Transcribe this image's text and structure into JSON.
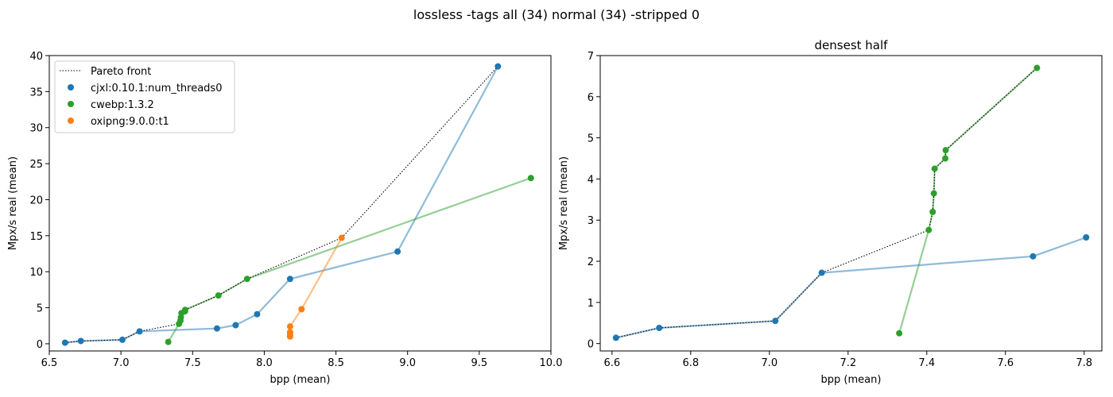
{
  "suptitle": "lossless -tags all (34) normal (34) -stripped 0",
  "colors": {
    "cjxl": "#1f77b4",
    "cwebp": "#2ca02c",
    "oxipng": "#ff7f0e",
    "pareto": "#000000"
  },
  "chart_data": [
    {
      "type": "scatter",
      "title": "",
      "xlabel": "bpp (mean)",
      "ylabel": "Mpx/s real (mean)",
      "xlim": [
        6.5,
        10.0
      ],
      "ylim": [
        -1.0,
        40.0
      ],
      "xticks": [
        6.5,
        7.0,
        7.5,
        8.0,
        8.5,
        9.0,
        9.5,
        10.0
      ],
      "xtick_labels": [
        "6.5",
        "7.0",
        "7.5",
        "8.0",
        "8.5",
        "9.0",
        "9.5",
        "10.0"
      ],
      "yticks": [
        0,
        5,
        10,
        15,
        20,
        25,
        30,
        35,
        40
      ],
      "ytick_labels": [
        "0",
        "5",
        "10",
        "15",
        "20",
        "25",
        "30",
        "35",
        "40"
      ],
      "legend": {
        "position": "top-left",
        "entries": [
          {
            "label": "Pareto front",
            "style": "dotted-line",
            "color": "#000000"
          },
          {
            "label": "cjxl:0.10.1:num_threads0",
            "style": "marker",
            "color": "#1f77b4"
          },
          {
            "label": "cwebp:1.3.2",
            "style": "marker",
            "color": "#2ca02c"
          },
          {
            "label": "oxipng:9.0.0:t1",
            "style": "marker",
            "color": "#ff7f0e"
          }
        ]
      },
      "series": [
        {
          "name": "cjxl:0.10.1:num_threads0",
          "color": "#1f77b4",
          "x": [
            6.61,
            6.72,
            7.01,
            7.13,
            7.67,
            7.8,
            7.95,
            8.18,
            8.93,
            9.63
          ],
          "y": [
            0.15,
            0.38,
            0.55,
            1.72,
            2.12,
            2.58,
            4.1,
            9.0,
            12.8,
            38.5
          ]
        },
        {
          "name": "cwebp:1.3.2",
          "color": "#2ca02c",
          "x": [
            7.33,
            7.405,
            7.415,
            7.418,
            7.422,
            7.447,
            7.448,
            7.68,
            7.88,
            9.86
          ],
          "y": [
            0.25,
            2.76,
            3.2,
            3.65,
            4.25,
            4.5,
            4.7,
            6.7,
            9.0,
            23.0
          ]
        },
        {
          "name": "oxipng:9.0.0:t1",
          "color": "#ff7f0e",
          "x": [
            8.18,
            8.18,
            8.18,
            8.18,
            8.26,
            8.54
          ],
          "y": [
            1.0,
            1.3,
            1.6,
            2.4,
            4.8,
            14.7
          ]
        }
      ],
      "pareto": {
        "x": [
          6.61,
          6.72,
          7.01,
          7.13,
          7.405,
          7.415,
          7.418,
          7.422,
          7.447,
          7.448,
          7.68,
          7.88,
          8.54,
          9.63
        ],
        "y": [
          0.15,
          0.38,
          0.55,
          1.72,
          2.76,
          3.2,
          3.65,
          4.25,
          4.5,
          4.7,
          6.7,
          9.0,
          14.7,
          38.5
        ]
      }
    },
    {
      "type": "scatter",
      "title": "densest half",
      "xlabel": "bpp (mean)",
      "ylabel": "Mpx/s real (mean)",
      "xlim": [
        6.57,
        7.845
      ],
      "ylim": [
        -0.18,
        7.0
      ],
      "xticks": [
        6.6,
        6.8,
        7.0,
        7.2,
        7.4,
        7.6,
        7.8
      ],
      "xtick_labels": [
        "6.6",
        "6.8",
        "7.0",
        "7.2",
        "7.4",
        "7.6",
        "7.8"
      ],
      "yticks": [
        0,
        1,
        2,
        3,
        4,
        5,
        6,
        7
      ],
      "ytick_labels": [
        "0",
        "1",
        "2",
        "3",
        "4",
        "5",
        "6",
        "7"
      ],
      "series": [
        {
          "name": "cjxl:0.10.1:num_threads0",
          "color": "#1f77b4",
          "x": [
            6.61,
            6.72,
            7.015,
            7.133,
            7.67,
            7.805
          ],
          "y": [
            0.14,
            0.38,
            0.55,
            1.72,
            2.12,
            2.58
          ]
        },
        {
          "name": "cwebp:1.3.2",
          "color": "#2ca02c",
          "x": [
            7.33,
            7.405,
            7.415,
            7.418,
            7.42,
            7.447,
            7.448,
            7.68
          ],
          "y": [
            0.25,
            2.76,
            3.2,
            3.65,
            4.25,
            4.5,
            4.7,
            6.7
          ]
        }
      ],
      "pareto": {
        "x": [
          6.61,
          6.72,
          7.015,
          7.133,
          7.405,
          7.415,
          7.418,
          7.42,
          7.447,
          7.448,
          7.68
        ],
        "y": [
          0.14,
          0.38,
          0.55,
          1.72,
          2.76,
          3.2,
          3.65,
          4.25,
          4.5,
          4.7,
          6.7
        ]
      }
    }
  ]
}
